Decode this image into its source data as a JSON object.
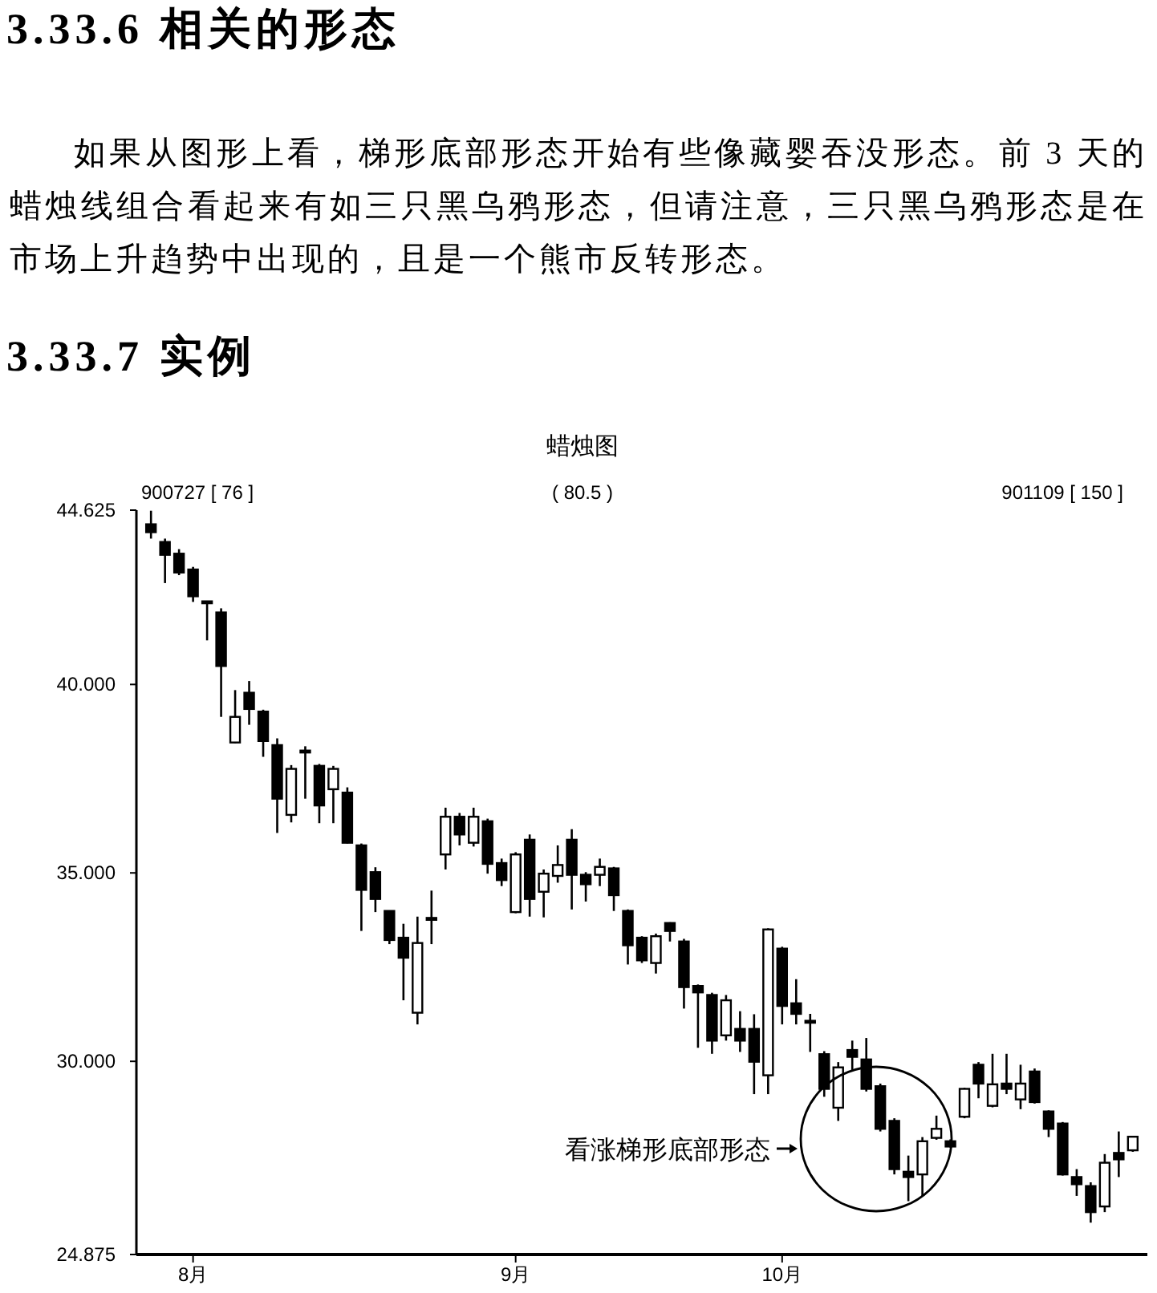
{
  "chart_data": {
    "type": "candlestick",
    "title": "蜡烛图",
    "annotations": [
      "3.33.6 相关的形态",
      "如果从图形上看，梯形底部形态开始有些像藏婴吞没形态。前 3 天的蜡烛线组合看起来有如三只黑乌鸦形态，但请注意，三只黑乌鸦形态是在市场上升趋势中出现的，且是一个熊市反转形态。",
      "3.33.7 实例",
      "900727 [ 76 ]",
      "( 80.5 )",
      "901109 [ 150 ]",
      "看涨梯形底部形态"
    ],
    "categories": [
      null,
      null,
      null,
      "8月",
      null,
      null,
      null,
      null,
      null,
      null,
      null,
      null,
      null,
      null,
      null,
      null,
      null,
      null,
      null,
      null,
      null,
      null,
      null,
      null,
      null,
      null,
      "9月",
      null,
      null,
      null,
      null,
      null,
      null,
      null,
      null,
      null,
      null,
      null,
      null,
      null,
      null,
      null,
      null,
      null,
      null,
      "10月",
      null,
      null,
      null,
      null,
      null,
      null,
      null,
      null,
      null,
      null,
      null,
      null,
      null,
      null,
      null,
      null,
      null,
      null,
      null,
      null,
      null,
      null,
      null,
      null,
      null
    ],
    "ohlc": [
      [
        44.25,
        44.61,
        43.87,
        44.04
      ],
      [
        43.78,
        43.87,
        42.69,
        43.44
      ],
      [
        43.47,
        43.59,
        42.9,
        42.97
      ],
      [
        43.05,
        43.12,
        42.19,
        42.34
      ],
      [
        42.19,
        42.2,
        41.17,
        42.17
      ],
      [
        41.91,
        42.02,
        39.14,
        40.49
      ],
      [
        38.46,
        39.85,
        38.44,
        39.14
      ],
      [
        39.78,
        40.09,
        38.93,
        39.35
      ],
      [
        39.28,
        39.33,
        38.08,
        38.5
      ],
      [
        38.39,
        38.57,
        36.06,
        36.97
      ],
      [
        36.54,
        37.86,
        36.34,
        37.76
      ],
      [
        38.24,
        38.36,
        36.97,
        38.2
      ],
      [
        37.84,
        37.89,
        36.32,
        36.79
      ],
      [
        37.22,
        37.84,
        36.32,
        37.76
      ],
      [
        37.13,
        37.27,
        35.78,
        35.8
      ],
      [
        35.73,
        35.78,
        33.46,
        34.55
      ],
      [
        35.02,
        35.15,
        33.96,
        34.31
      ],
      [
        33.99,
        34.0,
        33.11,
        33.22
      ],
      [
        33.28,
        33.65,
        31.62,
        32.75
      ],
      [
        31.29,
        33.84,
        30.98,
        33.14
      ],
      [
        33.8,
        34.53,
        33.11,
        33.76
      ],
      [
        35.49,
        36.73,
        35.09,
        36.49
      ],
      [
        36.49,
        36.59,
        35.73,
        36.02
      ],
      [
        35.8,
        36.73,
        35.7,
        36.49
      ],
      [
        36.37,
        36.44,
        34.98,
        35.24
      ],
      [
        35.26,
        35.38,
        34.65,
        34.81
      ],
      [
        33.96,
        35.55,
        33.93,
        35.49
      ],
      [
        35.88,
        36.02,
        33.84,
        34.31
      ],
      [
        34.5,
        35.09,
        33.82,
        34.98
      ],
      [
        34.92,
        35.73,
        34.74,
        35.21
      ],
      [
        35.88,
        36.16,
        34.03,
        34.95
      ],
      [
        34.95,
        35.02,
        34.24,
        34.7
      ],
      [
        34.95,
        35.38,
        34.65,
        35.16
      ],
      [
        35.12,
        35.16,
        33.99,
        34.41
      ],
      [
        33.99,
        34.03,
        32.57,
        33.08
      ],
      [
        33.28,
        33.32,
        32.61,
        32.68
      ],
      [
        32.61,
        33.39,
        32.33,
        33.32
      ],
      [
        33.67,
        33.69,
        33.18,
        33.46
      ],
      [
        33.18,
        33.25,
        31.4,
        31.97
      ],
      [
        32.0,
        32.04,
        30.36,
        31.83
      ],
      [
        31.76,
        31.82,
        30.2,
        30.55
      ],
      [
        30.69,
        31.76,
        30.55,
        31.62
      ],
      [
        30.86,
        31.33,
        30.25,
        30.55
      ],
      [
        30.86,
        31.25,
        29.13,
        29.99
      ],
      [
        29.63,
        33.53,
        29.13,
        33.5
      ],
      [
        32.99,
        33.04,
        30.98,
        31.47
      ],
      [
        31.54,
        32.18,
        30.98,
        31.26
      ],
      [
        31.07,
        31.26,
        30.25,
        31.03
      ],
      [
        30.19,
        30.27,
        29.06,
        29.27
      ],
      [
        28.77,
        29.98,
        28.42,
        29.84
      ],
      [
        30.3,
        30.55,
        29.77,
        30.12
      ],
      [
        30.05,
        30.62,
        29.2,
        29.27
      ],
      [
        29.34,
        29.41,
        28.14,
        28.21
      ],
      [
        28.42,
        28.49,
        27.0,
        27.14
      ],
      [
        27.07,
        27.5,
        26.29,
        26.93
      ],
      [
        27.0,
        27.99,
        26.43,
        27.88
      ],
      [
        27.97,
        28.56,
        27.92,
        28.21
      ],
      [
        27.88,
        27.93,
        27.71,
        27.74
      ],
      [
        28.53,
        29.3,
        28.49,
        29.27
      ],
      [
        29.91,
        29.98,
        29.02,
        29.41
      ],
      [
        28.82,
        30.2,
        28.78,
        29.39
      ],
      [
        29.41,
        30.2,
        29.13,
        29.27
      ],
      [
        28.99,
        29.91,
        28.73,
        29.41
      ],
      [
        29.73,
        29.81,
        28.88,
        28.92
      ],
      [
        28.67,
        28.7,
        27.99,
        28.21
      ],
      [
        28.35,
        28.39,
        26.97,
        27.0
      ],
      [
        26.93,
        27.14,
        26.43,
        26.74
      ],
      [
        26.69,
        26.79,
        25.72,
        26.0
      ],
      [
        26.15,
        27.54,
        26.0,
        27.31
      ],
      [
        27.57,
        28.14,
        26.93,
        27.4
      ],
      [
        27.64,
        28.02,
        27.6,
        28.0
      ]
    ],
    "ylim": [
      24.875,
      44.625
    ],
    "yticks": [
      {
        "value": 44.625,
        "label": "44.625"
      },
      {
        "value": 40,
        "label": "40.000"
      },
      {
        "value": 35,
        "label": "35.000"
      },
      {
        "value": 30,
        "label": "30.000"
      },
      {
        "value": 24.875,
        "label": "24.875"
      }
    ]
  }
}
